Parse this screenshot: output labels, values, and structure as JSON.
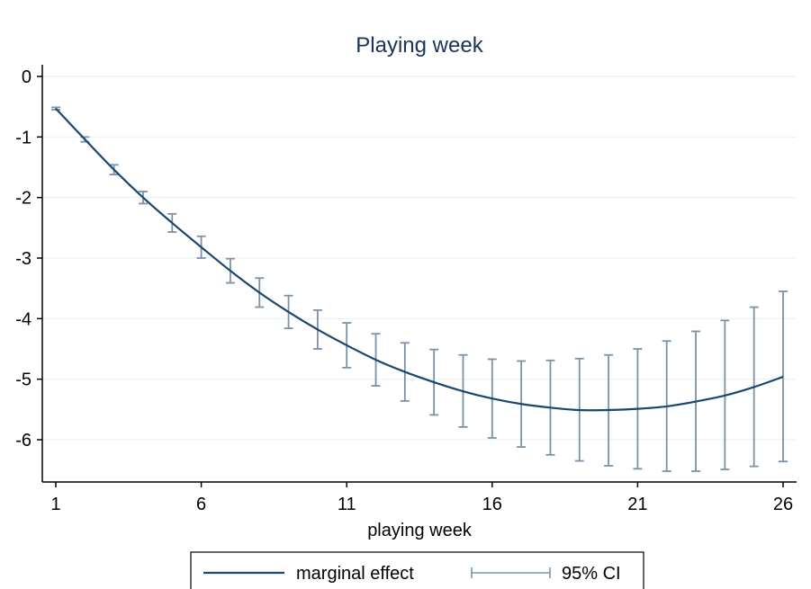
{
  "chart_data": {
    "type": "line",
    "title": "Playing week",
    "xlabel": "playing week",
    "ylabel": "",
    "xlim": [
      1,
      26
    ],
    "ylim": [
      -6.7,
      0.2
    ],
    "xticks": [
      1,
      6,
      11,
      16,
      21,
      26
    ],
    "yticks": [
      0,
      -1,
      -2,
      -3,
      -4,
      -5,
      -6
    ],
    "grid": "horizontal",
    "legend_placement": "bottom",
    "colors": {
      "line": "#1a476f",
      "ci": "#7b92a8",
      "grid": "#eaf2f3"
    },
    "series": [
      {
        "name": "marginal effect",
        "kind": "line",
        "x": [
          1,
          2,
          3,
          4,
          5,
          6,
          7,
          8,
          9,
          10,
          11,
          12,
          13,
          14,
          15,
          16,
          17,
          18,
          19,
          20,
          21,
          22,
          23,
          24,
          25,
          26
        ],
        "y": [
          -0.53,
          -1.04,
          -1.54,
          -2.0,
          -2.42,
          -2.82,
          -3.21,
          -3.57,
          -3.89,
          -4.18,
          -4.44,
          -4.68,
          -4.88,
          -5.05,
          -5.2,
          -5.32,
          -5.41,
          -5.47,
          -5.51,
          -5.51,
          -5.49,
          -5.45,
          -5.37,
          -5.27,
          -5.13,
          -4.96
        ]
      },
      {
        "name": "95% CI",
        "kind": "errorbar",
        "x": [
          1,
          2,
          3,
          4,
          5,
          6,
          7,
          8,
          9,
          10,
          11,
          12,
          13,
          14,
          15,
          16,
          17,
          18,
          19,
          20,
          21,
          22,
          23,
          24,
          25,
          26
        ],
        "lower": [
          -0.55,
          -1.08,
          -1.62,
          -2.1,
          -2.57,
          -3.0,
          -3.41,
          -3.81,
          -4.16,
          -4.5,
          -4.81,
          -5.11,
          -5.36,
          -5.59,
          -5.79,
          -5.97,
          -6.12,
          -6.25,
          -6.35,
          -6.43,
          -6.48,
          -6.52,
          -6.52,
          -6.49,
          -6.44,
          -6.36
        ],
        "upper": [
          -0.51,
          -1.0,
          -1.46,
          -1.9,
          -2.27,
          -2.64,
          -3.01,
          -3.33,
          -3.62,
          -3.86,
          -4.07,
          -4.25,
          -4.4,
          -4.51,
          -4.6,
          -4.67,
          -4.7,
          -4.69,
          -4.66,
          -4.6,
          -4.5,
          -4.37,
          -4.21,
          -4.03,
          -3.81,
          -3.55
        ]
      }
    ]
  },
  "legend": {
    "items": [
      {
        "label": "marginal effect",
        "kind": "line"
      },
      {
        "label": "95% CI",
        "kind": "errorbar"
      }
    ]
  }
}
